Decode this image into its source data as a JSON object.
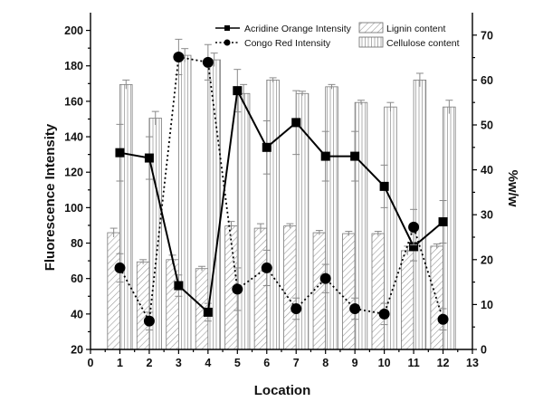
{
  "chart_data": {
    "type": "bar",
    "xlabel": "Location",
    "ylabel_left": "Fluorescence Intensity",
    "ylabel_right": "%w/w",
    "xlim": [
      0,
      13
    ],
    "xticks": [
      0,
      1,
      2,
      3,
      4,
      5,
      6,
      7,
      8,
      9,
      10,
      11,
      12,
      13
    ],
    "ylim_left": [
      20,
      210
    ],
    "yticks_left": [
      20,
      40,
      60,
      80,
      100,
      120,
      140,
      160,
      180,
      200
    ],
    "ylim_right": [
      0,
      75
    ],
    "yticks_right": [
      0,
      10,
      20,
      30,
      40,
      50,
      60,
      70
    ],
    "categories": [
      1,
      2,
      3,
      4,
      5,
      6,
      7,
      8,
      9,
      10,
      11,
      12
    ],
    "bar_series": [
      {
        "name": "Lignin content",
        "pattern": "diagonal-hatch",
        "axis": "right",
        "values": [
          26,
          19.5,
          20,
          18,
          27.5,
          27,
          27.5,
          26,
          25.8,
          25.8,
          22,
          23
        ],
        "errors": [
          1,
          0.5,
          1,
          0.5,
          1,
          1,
          0.5,
          0.5,
          0.5,
          0.5,
          1,
          0.5
        ]
      },
      {
        "name": "Cellulose content",
        "pattern": "vertical-lines",
        "axis": "right",
        "values": [
          59,
          51.5,
          65.5,
          64.5,
          57,
          60,
          57,
          58.5,
          55,
          54,
          60,
          54
        ],
        "errors": [
          1,
          1.5,
          1.5,
          1.5,
          2,
          0.5,
          0.5,
          0.5,
          0.5,
          1,
          1.5,
          1.5
        ]
      }
    ],
    "line_series": [
      {
        "name": "Acridine Orange Intensity",
        "style": "solid",
        "marker": "square",
        "axis": "left",
        "values": [
          131,
          128,
          56,
          41,
          166,
          134,
          148,
          129,
          129,
          112,
          78,
          92
        ],
        "errors": [
          16,
          12,
          6,
          5,
          12,
          15,
          18,
          14,
          14,
          12,
          8,
          12
        ]
      },
      {
        "name": "Congo Red Intensity",
        "style": "dotted",
        "marker": "circle",
        "axis": "left",
        "values": [
          66,
          36,
          185,
          182,
          54,
          66,
          43,
          60,
          43,
          40,
          89,
          37
        ],
        "errors": [
          8,
          5,
          10,
          10,
          12,
          10,
          6,
          8,
          6,
          6,
          10,
          6
        ]
      }
    ],
    "legend_position": "top-center",
    "grid": false
  }
}
